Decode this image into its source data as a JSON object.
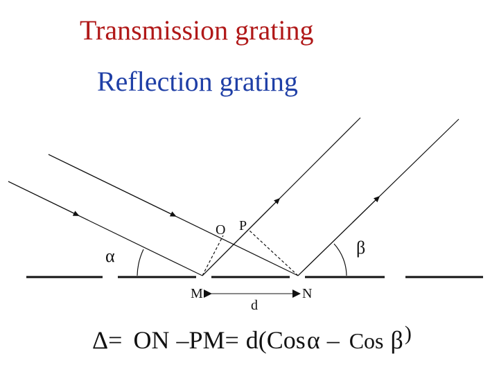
{
  "titles": {
    "transmission": "Transmission grating",
    "reflection": "Reflection grating"
  },
  "labels": {
    "alpha": "α",
    "beta": "β",
    "O": "O",
    "P": "P",
    "M": "M",
    "N": "N",
    "d": "d"
  },
  "formula": {
    "delta": "Δ=",
    "on": "ON",
    "minus_pm": "–PM=",
    "d_cos": "d(Cos",
    "alpha": "α",
    "minus": "–",
    "cos": "Cos",
    "beta": "β",
    "close_paren": ")"
  },
  "colors": {
    "transmission_title": "#b01818",
    "reflection_title": "#1f3fa6",
    "lines": "#111111"
  }
}
